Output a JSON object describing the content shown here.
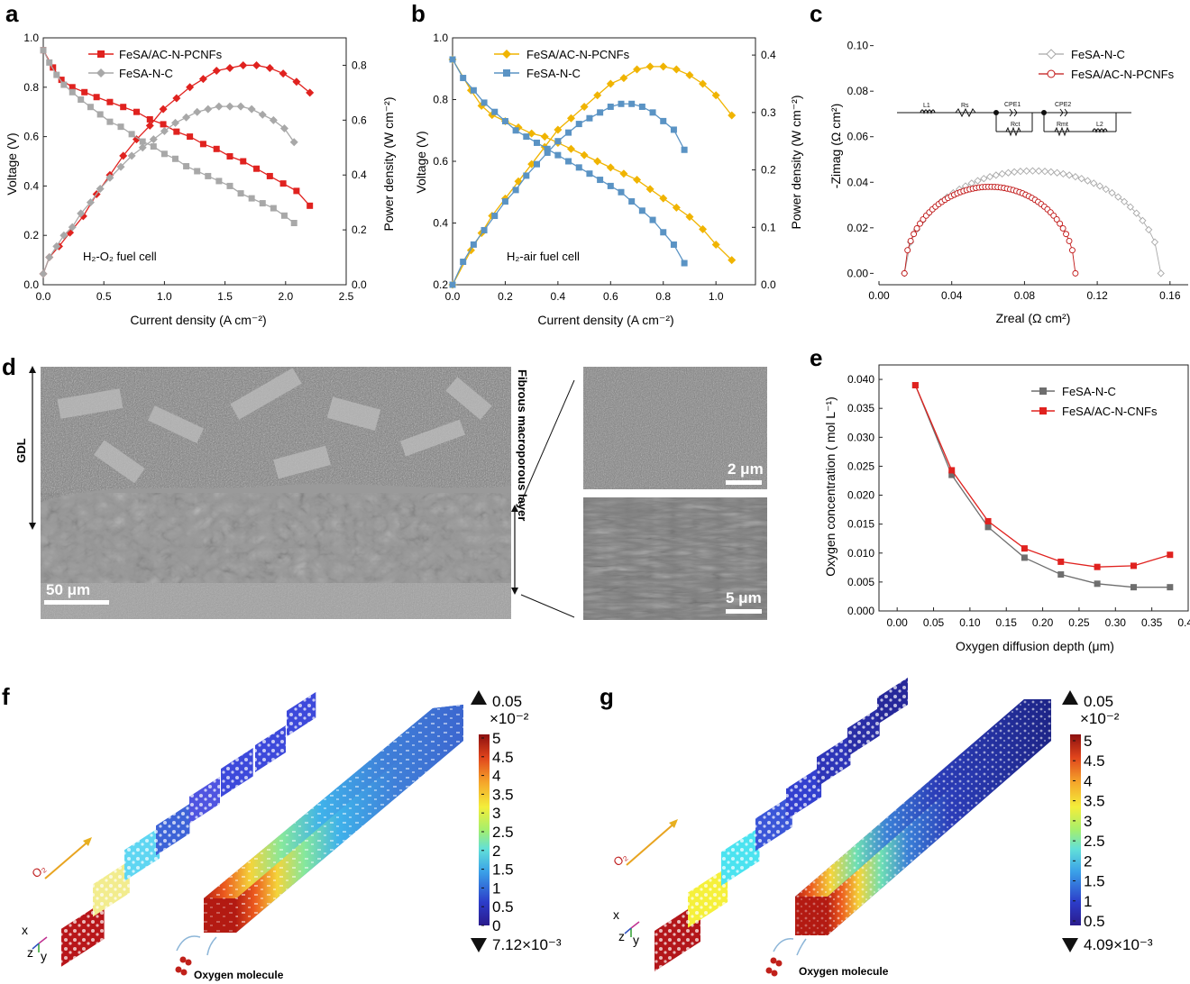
{
  "colors": {
    "red": "#e0221f",
    "red_dark": "#c01515",
    "gray": "#a8a8a8",
    "gray_dark": "#6e6e6e",
    "gold": "#f0b400",
    "blue": "#5a93c4",
    "black": "#000000"
  },
  "panels": {
    "a": "a",
    "b": "b",
    "c": "c",
    "d": "d",
    "e": "e",
    "f": "f",
    "g": "g"
  },
  "chart_data": [
    {
      "id": "a",
      "type": "line",
      "xlabel": "Current density (A cm⁻²)",
      "ylabel_left": "Voltage (V)",
      "ylabel_right": "Power density (W cm⁻²)",
      "annotation": "H₂-O₂ fuel cell",
      "xlim": [
        0,
        2.5
      ],
      "ylim_left": [
        0,
        1.0
      ],
      "ylim_right": [
        0,
        0.9
      ],
      "xticks": [
        "0.0",
        "0.5",
        "1.0",
        "1.5",
        "2.0",
        "2.5"
      ],
      "yticks_left": [
        "0.0",
        "0.2",
        "0.4",
        "0.6",
        "0.8",
        "1.0"
      ],
      "yticks_right": [
        "0.0",
        "0.2",
        "0.4",
        "0.6",
        "0.8"
      ],
      "series": [
        {
          "name": "FeSA/AC-N-PCNFs",
          "color": "#e0221f",
          "marker": "square",
          "axis": "left",
          "x": [
            0.0,
            0.08,
            0.15,
            0.24,
            0.34,
            0.44,
            0.55,
            0.66,
            0.77,
            0.88,
            0.99,
            1.1,
            1.21,
            1.32,
            1.43,
            1.54,
            1.65,
            1.76,
            1.87,
            1.98,
            2.09,
            2.2
          ],
          "y": [
            0.95,
            0.88,
            0.83,
            0.8,
            0.78,
            0.76,
            0.74,
            0.72,
            0.7,
            0.67,
            0.65,
            0.62,
            0.6,
            0.57,
            0.55,
            0.52,
            0.5,
            0.47,
            0.44,
            0.41,
            0.38,
            0.32
          ]
        },
        {
          "name": "FeSA/AC-N-PCNFs",
          "color": "#e0221f",
          "marker": "diamond",
          "axis": "right",
          "x": [
            0.0,
            0.05,
            0.13,
            0.22,
            0.33,
            0.44,
            0.55,
            0.66,
            0.77,
            0.88,
            0.99,
            1.1,
            1.21,
            1.32,
            1.43,
            1.54,
            1.65,
            1.76,
            1.87,
            1.98,
            2.09,
            2.2
          ],
          "y": [
            0.04,
            0.1,
            0.14,
            0.19,
            0.25,
            0.33,
            0.4,
            0.47,
            0.53,
            0.58,
            0.64,
            0.68,
            0.72,
            0.75,
            0.78,
            0.79,
            0.8,
            0.8,
            0.79,
            0.77,
            0.74,
            0.7
          ]
        },
        {
          "name": "FeSA-N-C",
          "color": "#a8a8a8",
          "marker": "square",
          "axis": "left",
          "x": [
            0.0,
            0.05,
            0.11,
            0.17,
            0.24,
            0.31,
            0.39,
            0.47,
            0.55,
            0.64,
            0.73,
            0.82,
            0.91,
            1.0,
            1.09,
            1.18,
            1.27,
            1.36,
            1.45,
            1.54,
            1.63,
            1.72,
            1.81,
            1.9,
            1.99,
            2.07
          ],
          "y": [
            0.95,
            0.9,
            0.85,
            0.81,
            0.78,
            0.75,
            0.72,
            0.69,
            0.66,
            0.64,
            0.61,
            0.58,
            0.56,
            0.53,
            0.51,
            0.48,
            0.46,
            0.44,
            0.42,
            0.4,
            0.37,
            0.35,
            0.33,
            0.31,
            0.28,
            0.25
          ]
        },
        {
          "name": "FeSA-N-C",
          "color": "#a8a8a8",
          "marker": "diamond",
          "axis": "right",
          "x": [
            0.0,
            0.05,
            0.11,
            0.17,
            0.24,
            0.31,
            0.39,
            0.47,
            0.55,
            0.64,
            0.73,
            0.82,
            0.91,
            1.0,
            1.09,
            1.18,
            1.27,
            1.36,
            1.45,
            1.54,
            1.63,
            1.72,
            1.81,
            1.9,
            1.99,
            2.07
          ],
          "y": [
            0.04,
            0.1,
            0.14,
            0.18,
            0.21,
            0.26,
            0.3,
            0.35,
            0.39,
            0.43,
            0.47,
            0.5,
            0.53,
            0.56,
            0.59,
            0.61,
            0.63,
            0.64,
            0.65,
            0.65,
            0.65,
            0.64,
            0.62,
            0.6,
            0.57,
            0.52
          ]
        }
      ]
    },
    {
      "id": "b",
      "type": "line",
      "xlabel": "Current density (A cm⁻²)",
      "ylabel_left": "Voltage (V)",
      "ylabel_right": "Power density (W cm⁻²)",
      "annotation": "H₂-air fuel cell",
      "xlim": [
        0,
        1.15
      ],
      "ylim_left": [
        0.2,
        1.0
      ],
      "ylim_right": [
        0,
        0.43
      ],
      "xticks": [
        "0.0",
        "0.2",
        "0.4",
        "0.6",
        "0.8",
        "1.0"
      ],
      "yticks_left": [
        "0.2",
        "0.4",
        "0.6",
        "0.8",
        "1.0"
      ],
      "yticks_right": [
        "0.0",
        "0.1",
        "0.2",
        "0.3",
        "0.4"
      ],
      "series": [
        {
          "name": "FeSA/AC-N-PCNFs",
          "color": "#f0b400",
          "marker": "diamond",
          "axis": "left",
          "x": [
            0.0,
            0.07,
            0.11,
            0.15,
            0.2,
            0.25,
            0.3,
            0.35,
            0.4,
            0.45,
            0.5,
            0.55,
            0.6,
            0.65,
            0.7,
            0.75,
            0.8,
            0.85,
            0.9,
            0.95,
            1.0,
            1.06
          ],
          "y": [
            0.93,
            0.83,
            0.78,
            0.75,
            0.73,
            0.71,
            0.69,
            0.68,
            0.66,
            0.64,
            0.62,
            0.6,
            0.58,
            0.56,
            0.54,
            0.51,
            0.48,
            0.45,
            0.42,
            0.38,
            0.33,
            0.28
          ]
        },
        {
          "name": "FeSA/AC-N-PCNFs",
          "color": "#f0b400",
          "marker": "diamond",
          "axis": "right",
          "x": [
            0.0,
            0.07,
            0.11,
            0.15,
            0.2,
            0.25,
            0.3,
            0.35,
            0.4,
            0.45,
            0.5,
            0.55,
            0.6,
            0.65,
            0.7,
            0.75,
            0.8,
            0.85,
            0.9,
            0.95,
            1.0,
            1.06
          ],
          "y": [
            0.0,
            0.06,
            0.09,
            0.12,
            0.15,
            0.18,
            0.21,
            0.24,
            0.27,
            0.29,
            0.31,
            0.33,
            0.35,
            0.36,
            0.375,
            0.38,
            0.38,
            0.375,
            0.365,
            0.35,
            0.33,
            0.295
          ]
        },
        {
          "name": "FeSA-N-C",
          "color": "#5a93c4",
          "marker": "square",
          "axis": "left",
          "x": [
            0.0,
            0.04,
            0.08,
            0.12,
            0.16,
            0.2,
            0.24,
            0.28,
            0.32,
            0.36,
            0.4,
            0.44,
            0.48,
            0.52,
            0.56,
            0.6,
            0.64,
            0.68,
            0.72,
            0.76,
            0.8,
            0.84,
            0.88
          ],
          "y": [
            0.93,
            0.87,
            0.83,
            0.79,
            0.76,
            0.73,
            0.7,
            0.68,
            0.66,
            0.64,
            0.62,
            0.6,
            0.58,
            0.56,
            0.54,
            0.52,
            0.5,
            0.47,
            0.44,
            0.41,
            0.37,
            0.33,
            0.27
          ]
        },
        {
          "name": "FeSA-N-C",
          "color": "#5a93c4",
          "marker": "square",
          "axis": "right",
          "x": [
            0.0,
            0.04,
            0.08,
            0.12,
            0.16,
            0.2,
            0.24,
            0.28,
            0.32,
            0.36,
            0.4,
            0.44,
            0.48,
            0.52,
            0.56,
            0.6,
            0.64,
            0.68,
            0.72,
            0.76,
            0.8,
            0.84,
            0.88
          ],
          "y": [
            0.0,
            0.04,
            0.07,
            0.095,
            0.12,
            0.145,
            0.165,
            0.19,
            0.21,
            0.23,
            0.25,
            0.265,
            0.28,
            0.29,
            0.3,
            0.31,
            0.315,
            0.315,
            0.31,
            0.3,
            0.285,
            0.27,
            0.235
          ]
        }
      ]
    },
    {
      "id": "c",
      "type": "scatter",
      "xlabel": "Zreal (Ω cm²)",
      "ylabel": "-Zimag (Ω cm²)",
      "xlim": [
        0,
        0.17
      ],
      "ylim": [
        -0.005,
        0.105
      ],
      "xticks": [
        "0.00",
        "0.04",
        "0.08",
        "0.12",
        "0.16"
      ],
      "yticks": [
        "0.00",
        "0.02",
        "0.04",
        "0.06",
        "0.08",
        "0.10"
      ],
      "circuit_labels": [
        "L1",
        "Rs",
        "CPE1",
        "Rct",
        "CPE2",
        "Rmt",
        "L2"
      ],
      "series": [
        {
          "name": "FeSA-N-C",
          "color": "#a8a8a8",
          "marker": "diamond-open",
          "center": 0.0845,
          "radius": 0.0705,
          "ymax": 0.045,
          "xstart": 0.014,
          "xend": 0.155
        },
        {
          "name": "FeSA/AC-N-PCNFs",
          "color": "#c01515",
          "marker": "circle-open",
          "center": 0.061,
          "radius": 0.047,
          "ymax": 0.038,
          "xstart": 0.014,
          "xend": 0.108
        }
      ]
    },
    {
      "id": "e",
      "type": "line",
      "xlabel": "Oxygen diffusion depth (μm)",
      "ylabel": "Oxygen concentration ( mol L⁻¹)",
      "xlim": [
        -0.025,
        0.4
      ],
      "ylim": [
        0,
        0.0425
      ],
      "xticks": [
        "0.00",
        "0.05",
        "0.10",
        "0.15",
        "0.20",
        "0.25",
        "0.30",
        "0.35",
        "0.40"
      ],
      "yticks": [
        "0.000",
        "0.005",
        "0.010",
        "0.015",
        "0.020",
        "0.025",
        "0.030",
        "0.035",
        "0.040"
      ],
      "series": [
        {
          "name": "FeSA-N-C",
          "color": "#6e6e6e",
          "marker": "square",
          "x": [
            0.025,
            0.075,
            0.125,
            0.175,
            0.225,
            0.275,
            0.325,
            0.375
          ],
          "y": [
            0.039,
            0.0235,
            0.0145,
            0.0092,
            0.0063,
            0.0047,
            0.0041,
            0.0041
          ]
        },
        {
          "name": "FeSA/AC-N-CNFs",
          "color": "#e0221f",
          "marker": "square",
          "x": [
            0.025,
            0.075,
            0.125,
            0.175,
            0.225,
            0.275,
            0.325,
            0.375
          ],
          "y": [
            0.039,
            0.0243,
            0.0155,
            0.0108,
            0.0085,
            0.0076,
            0.0078,
            0.0097
          ]
        }
      ]
    }
  ],
  "panel_d": {
    "gdl_label": "GDL",
    "fibrous_label": "Fibrous macroporous layer",
    "scale_main": "50 μm",
    "scale_top": "2 μm",
    "scale_bottom": "5 μm"
  },
  "panel_f": {
    "max_label": "0.05",
    "exponent": "×10⁻²",
    "min_label": "7.12×10⁻³",
    "ticks": [
      "5",
      "4.5",
      "4",
      "3.5",
      "3",
      "2.5",
      "2",
      "1.5",
      "1",
      "0.5",
      "0"
    ],
    "arrow_label": "O₂",
    "molecule_label": "Oxygen molecule",
    "axes_labels": [
      "x",
      "z",
      "y"
    ]
  },
  "panel_g": {
    "max_label": "0.05",
    "exponent": "×10⁻²",
    "min_label": "4.09×10⁻³",
    "ticks": [
      "5",
      "4.5",
      "4",
      "3.5",
      "3",
      "2.5",
      "2",
      "1.5",
      "1",
      "0.5"
    ],
    "arrow_label": "O₂",
    "molecule_label": "Oxygen molecule",
    "axes_labels": [
      "x",
      "z",
      "y"
    ]
  }
}
